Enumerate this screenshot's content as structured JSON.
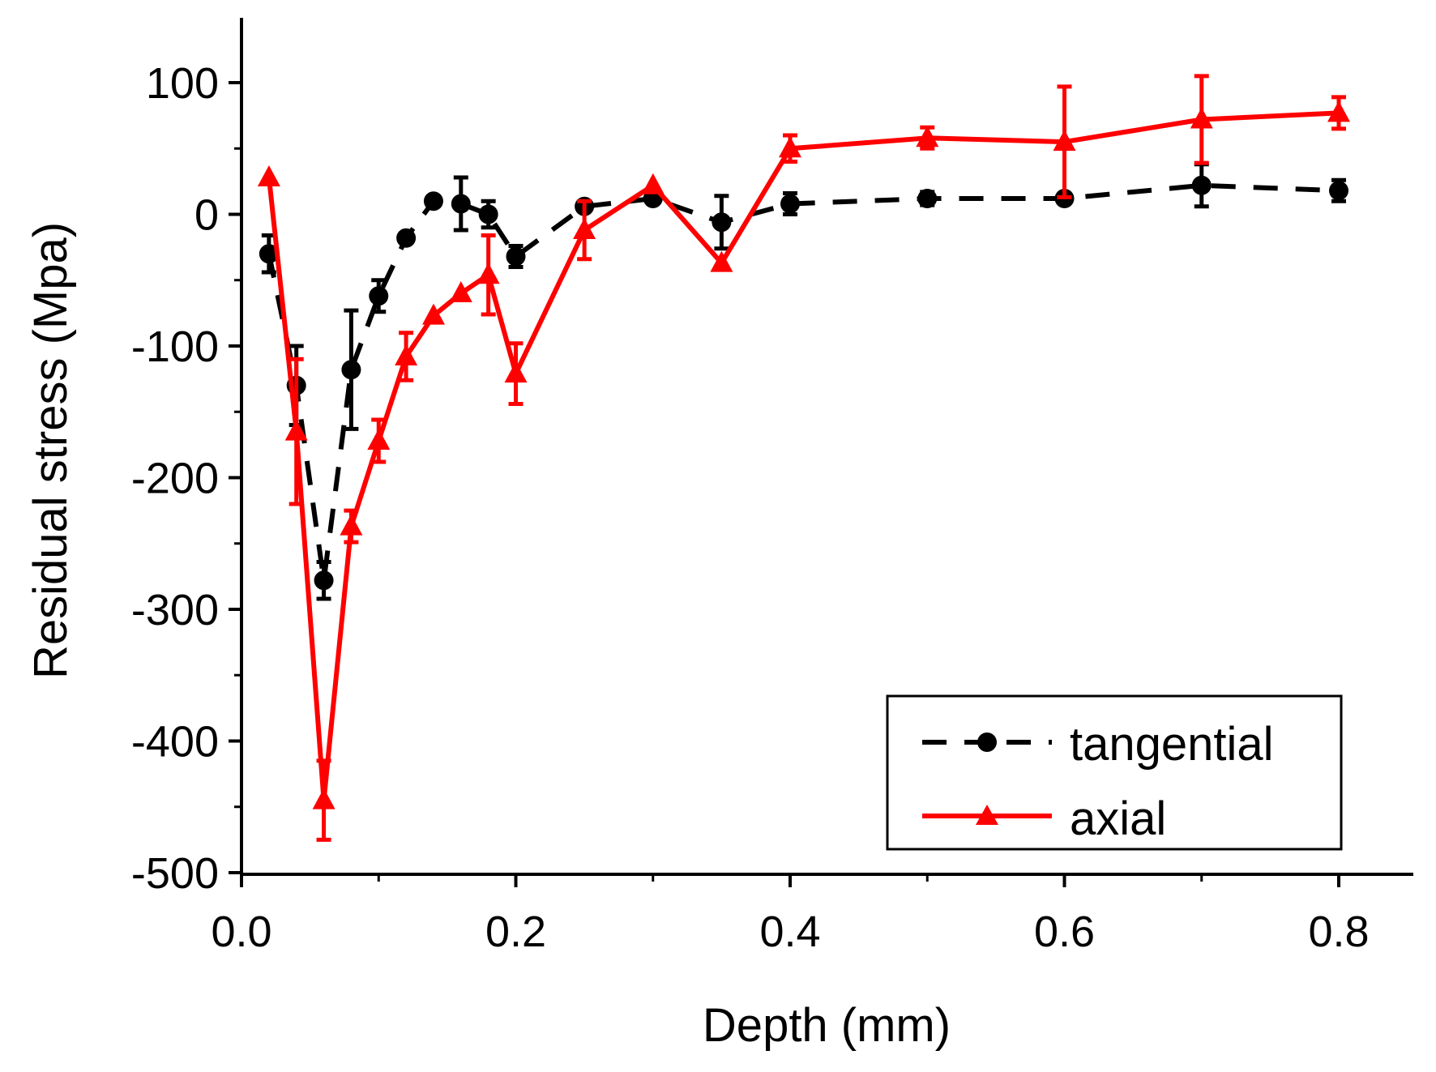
{
  "chart_data": {
    "type": "line",
    "title": "",
    "xlabel": "Depth (mm)",
    "ylabel": "Residual stress (Mpa)",
    "xlim": [
      0.0,
      0.85
    ],
    "ylim": [
      -500,
      150
    ],
    "xticks": [
      0.0,
      0.2,
      0.4,
      0.6,
      0.8
    ],
    "xtick_labels": [
      "0.0",
      "0.2",
      "0.4",
      "0.6",
      "0.8"
    ],
    "yticks": [
      -500,
      -400,
      -300,
      -200,
      -100,
      0,
      100
    ],
    "ytick_labels": [
      "-500",
      "-400",
      "-300",
      "-200",
      "-100",
      "0",
      "100"
    ],
    "grid": false,
    "legend_position": "bottom-right",
    "series": [
      {
        "name": "tangential",
        "color": "#000000",
        "line_style": "dashed",
        "marker": "circle",
        "x": [
          0.02,
          0.04,
          0.06,
          0.08,
          0.1,
          0.12,
          0.14,
          0.16,
          0.18,
          0.2,
          0.25,
          0.3,
          0.35,
          0.4,
          0.5,
          0.6,
          0.7,
          0.8
        ],
        "y": [
          -30,
          -130,
          -278,
          -118,
          -62,
          -18,
          10,
          8,
          0,
          -32,
          6,
          12,
          -6,
          8,
          12,
          12,
          22,
          18
        ],
        "err": [
          14,
          30,
          14,
          45,
          12,
          0,
          0,
          20,
          10,
          8,
          0,
          0,
          20,
          8,
          5,
          0,
          16,
          8
        ]
      },
      {
        "name": "axial",
        "color": "#ff0000",
        "line_style": "solid",
        "marker": "triangle",
        "x": [
          0.02,
          0.04,
          0.06,
          0.08,
          0.1,
          0.12,
          0.14,
          0.16,
          0.18,
          0.2,
          0.25,
          0.3,
          0.35,
          0.4,
          0.5,
          0.6,
          0.7,
          0.8
        ],
        "y": [
          28,
          -165,
          -445,
          -237,
          -172,
          -108,
          -77,
          -60,
          -46,
          -121,
          -12,
          22,
          -37,
          50,
          58,
          55,
          72,
          77
        ],
        "err": [
          0,
          55,
          30,
          12,
          16,
          18,
          0,
          0,
          30,
          23,
          22,
          0,
          0,
          10,
          8,
          42,
          33,
          12
        ]
      }
    ]
  }
}
